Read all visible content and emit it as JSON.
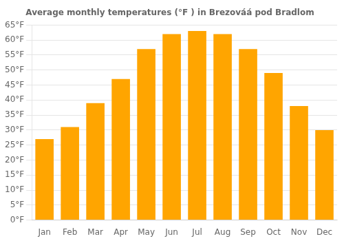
{
  "chart_data": {
    "type": "bar",
    "title": "Average monthly temperatures (°F ) in Brezováá pod Bradlom",
    "categories": [
      "Jan",
      "Feb",
      "Mar",
      "Apr",
      "May",
      "Jun",
      "Jul",
      "Aug",
      "Sep",
      "Oct",
      "Nov",
      "Dec"
    ],
    "values": [
      27,
      31,
      39,
      47,
      57,
      62,
      63,
      62,
      57,
      49,
      38,
      30
    ],
    "color": "#FFA500",
    "ylim": [
      0,
      65
    ],
    "yticks": [
      {
        "value": 0,
        "label": "0°F"
      },
      {
        "value": 5,
        "label": "5°F"
      },
      {
        "value": 10,
        "label": "10°F"
      },
      {
        "value": 15,
        "label": "15°F"
      },
      {
        "value": 20,
        "label": "20°F"
      },
      {
        "value": 25,
        "label": "25°F"
      },
      {
        "value": 30,
        "label": "30°F"
      },
      {
        "value": 35,
        "label": "35°F"
      },
      {
        "value": 40,
        "label": "40°F"
      },
      {
        "value": 45,
        "label": "45°F"
      },
      {
        "value": 50,
        "label": "50°F"
      },
      {
        "value": 55,
        "label": "55°F"
      },
      {
        "value": 60,
        "label": "60°F"
      },
      {
        "value": 65,
        "label": "65°F"
      }
    ],
    "grid": true
  }
}
